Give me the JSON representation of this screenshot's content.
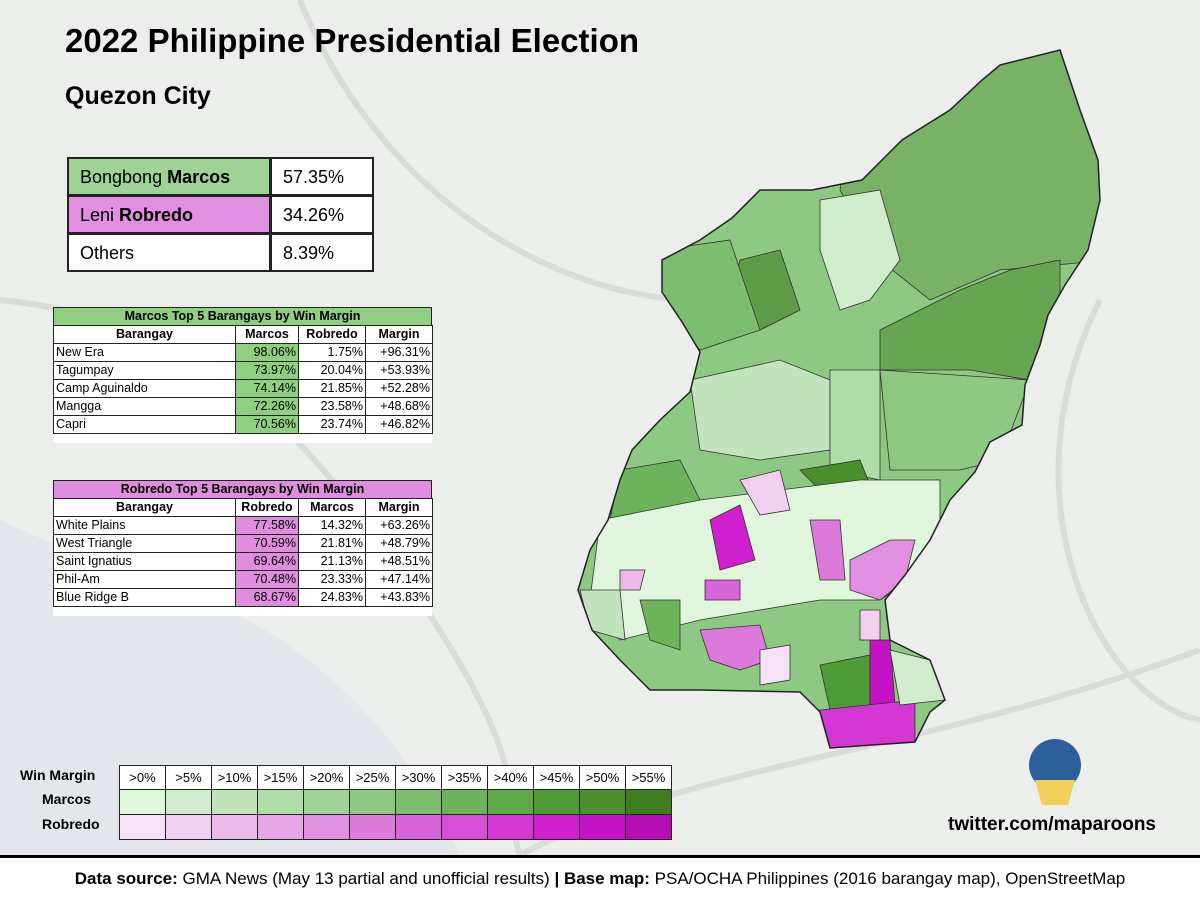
{
  "header": {
    "title": "2022 Philippine Presidential Election",
    "subtitle": "Quezon City"
  },
  "summary": {
    "rows": [
      {
        "first": "Bongbong",
        "last": "Marcos",
        "share": "57.35%"
      },
      {
        "first": "Leni",
        "last": "Robredo",
        "share": "34.26%"
      },
      {
        "first": "Others",
        "share": "8.39%"
      }
    ]
  },
  "marcos_top": {
    "title": "Marcos Top 5 Barangays by Win Margin",
    "columns": [
      "Barangay",
      "Marcos",
      "Robredo",
      "Margin"
    ],
    "rows": [
      [
        "New Era",
        "98.06%",
        "1.75%",
        "+96.31%"
      ],
      [
        "Tagumpay",
        "73.97%",
        "20.04%",
        "+53.93%"
      ],
      [
        "Camp Aguinaldo",
        "74.14%",
        "21.85%",
        "+52.28%"
      ],
      [
        "Mangga",
        "72.26%",
        "23.58%",
        "+48.68%"
      ],
      [
        "Capri",
        "70.56%",
        "23.74%",
        "+46.82%"
      ]
    ]
  },
  "robredo_top": {
    "title": "Robredo Top 5 Barangays by Win Margin",
    "columns": [
      "Barangay",
      "Robredo",
      "Marcos",
      "Margin"
    ],
    "rows": [
      [
        "White Plains",
        "77.58%",
        "14.32%",
        "+63.26%"
      ],
      [
        "West Triangle",
        "70.59%",
        "21.81%",
        "+48.79%"
      ],
      [
        "Saint Ignatius",
        "69.64%",
        "21.13%",
        "+48.51%"
      ],
      [
        "Phil-Am",
        "70.48%",
        "23.33%",
        "+47.14%"
      ],
      [
        "Blue Ridge B",
        "68.67%",
        "24.83%",
        "+43.83%"
      ]
    ]
  },
  "legend": {
    "label": "Win Margin",
    "bins": [
      ">0%",
      ">5%",
      ">10%",
      ">15%",
      ">20%",
      ">25%",
      ">30%",
      ">35%",
      ">40%",
      ">45%",
      ">50%",
      ">55%"
    ],
    "rows": [
      "Marcos",
      "Robredo"
    ]
  },
  "credit": "twitter.com/maparoons",
  "footer": {
    "source_label": "Data source:",
    "source": "GMA News (May 13 partial and unofficial results)",
    "separator": "|",
    "basemap_label": "Base map:",
    "basemap": "PSA/OCHA Philippines (2016 barangay map), OpenStreetMap"
  }
}
